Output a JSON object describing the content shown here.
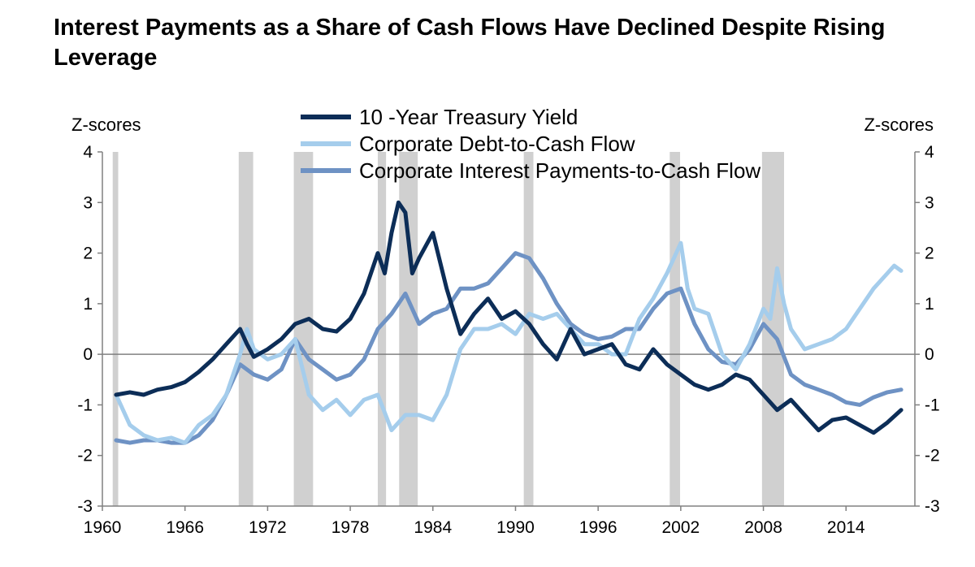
{
  "chart_data": {
    "type": "line",
    "title": "Interest Payments as a Share of Cash Flows Have Declined Despite Rising Leverage",
    "ylabel_left": "Z-scores",
    "ylabel_right": "Z-scores",
    "ylim": [
      -3,
      4
    ],
    "xlim": [
      1960,
      2019
    ],
    "x_ticks": [
      1960,
      1966,
      1972,
      1978,
      1984,
      1990,
      1996,
      2002,
      2008,
      2014
    ],
    "y_ticks": [
      -3,
      -2,
      -1,
      0,
      1,
      2,
      3,
      4
    ],
    "grid": false,
    "legend_position": "top-center",
    "recessions": [
      [
        1960.75,
        1961.15
      ],
      [
        1969.9,
        1970.95
      ],
      [
        1973.9,
        1975.3
      ],
      [
        1980.0,
        1980.6
      ],
      [
        1981.55,
        1982.9
      ],
      [
        1990.6,
        1991.3
      ],
      [
        2001.2,
        2001.95
      ],
      [
        2007.9,
        2009.5
      ]
    ],
    "series": [
      {
        "name": "10 -Year Treasury Yield",
        "color": "#0c2d57",
        "x": [
          1961,
          1962,
          1963,
          1964,
          1965,
          1966,
          1967,
          1968,
          1969,
          1970,
          1970.5,
          1971,
          1972,
          1973,
          1974,
          1975,
          1976,
          1977,
          1978,
          1979,
          1980,
          1980.5,
          1981,
          1981.5,
          1982,
          1982.5,
          1983,
          1984,
          1985,
          1986,
          1987,
          1988,
          1989,
          1990,
          1991,
          1992,
          1993,
          1994,
          1995,
          1996,
          1997,
          1998,
          1999,
          2000,
          2001,
          2002,
          2003,
          2004,
          2005,
          2006,
          2007,
          2008,
          2009,
          2010,
          2011,
          2012,
          2013,
          2014,
          2015,
          2016,
          2017,
          2018
        ],
        "y": [
          -0.8,
          -0.75,
          -0.8,
          -0.7,
          -0.65,
          -0.55,
          -0.35,
          -0.1,
          0.2,
          0.5,
          0.2,
          -0.05,
          0.1,
          0.3,
          0.6,
          0.7,
          0.5,
          0.45,
          0.7,
          1.2,
          2.0,
          1.6,
          2.4,
          3.0,
          2.8,
          1.6,
          1.9,
          2.4,
          1.3,
          0.4,
          0.8,
          1.1,
          0.7,
          0.85,
          0.6,
          0.2,
          -0.1,
          0.5,
          0.0,
          0.1,
          0.2,
          -0.2,
          -0.3,
          0.1,
          -0.2,
          -0.4,
          -0.6,
          -0.7,
          -0.6,
          -0.4,
          -0.5,
          -0.8,
          -1.1,
          -0.9,
          -1.2,
          -1.5,
          -1.3,
          -1.25,
          -1.4,
          -1.55,
          -1.35,
          -1.1
        ]
      },
      {
        "name": "Corporate Debt-to-Cash Flow",
        "color": "#a5cdec",
        "x": [
          1961,
          1962,
          1963,
          1964,
          1965,
          1966,
          1967,
          1968,
          1969,
          1970,
          1970.5,
          1971,
          1972,
          1973,
          1974,
          1975,
          1976,
          1977,
          1978,
          1979,
          1980,
          1981,
          1982,
          1983,
          1984,
          1985,
          1986,
          1987,
          1988,
          1989,
          1990,
          1991,
          1992,
          1993,
          1994,
          1995,
          1996,
          1997,
          1998,
          1999,
          2000,
          2001,
          2002,
          2002.5,
          2003,
          2004,
          2005,
          2006,
          2007,
          2008,
          2008.5,
          2009,
          2009.5,
          2010,
          2011,
          2012,
          2013,
          2014,
          2015,
          2016,
          2017,
          2017.5,
          2018
        ],
        "y": [
          -0.8,
          -1.4,
          -1.6,
          -1.7,
          -1.65,
          -1.75,
          -1.4,
          -1.2,
          -0.8,
          0.0,
          0.5,
          0.1,
          -0.1,
          0.0,
          0.3,
          -0.8,
          -1.1,
          -0.9,
          -1.2,
          -0.9,
          -0.8,
          -1.5,
          -1.2,
          -1.2,
          -1.3,
          -0.8,
          0.1,
          0.5,
          0.5,
          0.6,
          0.4,
          0.8,
          0.7,
          0.8,
          0.5,
          0.2,
          0.2,
          0.0,
          0.0,
          0.7,
          1.1,
          1.6,
          2.2,
          1.3,
          0.9,
          0.8,
          0.0,
          -0.3,
          0.2,
          0.9,
          0.7,
          1.7,
          1.0,
          0.5,
          0.1,
          0.2,
          0.3,
          0.5,
          0.9,
          1.3,
          1.6,
          1.75,
          1.65
        ]
      },
      {
        "name": "Corporate Interest Payments-to-Cash Flow",
        "color": "#6e92c4",
        "x": [
          1961,
          1962,
          1963,
          1964,
          1965,
          1966,
          1967,
          1968,
          1969,
          1970,
          1971,
          1972,
          1973,
          1974,
          1975,
          1976,
          1977,
          1978,
          1979,
          1980,
          1981,
          1982,
          1983,
          1984,
          1985,
          1986,
          1987,
          1988,
          1989,
          1990,
          1991,
          1992,
          1993,
          1994,
          1995,
          1996,
          1997,
          1998,
          1999,
          2000,
          2001,
          2002,
          2003,
          2004,
          2005,
          2006,
          2007,
          2008,
          2009,
          2010,
          2011,
          2012,
          2013,
          2014,
          2015,
          2016,
          2017,
          2018
        ],
        "y": [
          -1.7,
          -1.75,
          -1.7,
          -1.7,
          -1.75,
          -1.75,
          -1.6,
          -1.3,
          -0.8,
          -0.2,
          -0.4,
          -0.5,
          -0.3,
          0.3,
          -0.1,
          -0.3,
          -0.5,
          -0.4,
          -0.1,
          0.5,
          0.8,
          1.2,
          0.6,
          0.8,
          0.9,
          1.3,
          1.3,
          1.4,
          1.7,
          2.0,
          1.9,
          1.5,
          1.0,
          0.6,
          0.4,
          0.3,
          0.35,
          0.5,
          0.5,
          0.9,
          1.2,
          1.3,
          0.6,
          0.1,
          -0.15,
          -0.2,
          0.1,
          0.6,
          0.3,
          -0.4,
          -0.6,
          -0.7,
          -0.8,
          -0.95,
          -1.0,
          -0.85,
          -0.75,
          -0.7
        ]
      }
    ]
  }
}
